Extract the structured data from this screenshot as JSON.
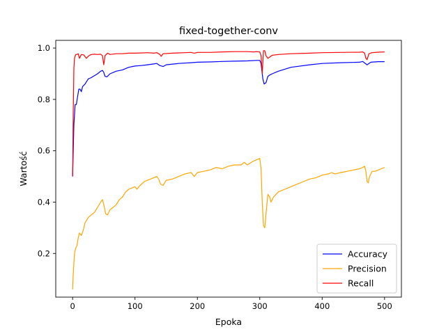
{
  "chart_data": {
    "type": "line",
    "title": "fixed-together-conv",
    "xlabel": "Epoka",
    "ylabel": "Wartość",
    "xlim": [
      -27,
      527
    ],
    "ylim": [
      0.03,
      1.03
    ],
    "xticks": [
      0,
      100,
      200,
      300,
      400,
      500
    ],
    "yticks": [
      0.2,
      0.4,
      0.6,
      0.8,
      1.0
    ],
    "xtick_labels": [
      "0",
      "100",
      "200",
      "300",
      "400",
      "500"
    ],
    "ytick_labels": [
      "0.2",
      "0.4",
      "0.6",
      "0.8",
      "1.0"
    ],
    "grid": false,
    "legend": "lower right",
    "series": [
      {
        "name": "Accuracy",
        "color": "#0000ff",
        "points": [
          [
            0,
            0.5
          ],
          [
            2,
            0.7
          ],
          [
            4,
            0.78
          ],
          [
            6,
            0.78
          ],
          [
            8,
            0.81
          ],
          [
            10,
            0.84
          ],
          [
            12,
            0.84
          ],
          [
            14,
            0.83
          ],
          [
            16,
            0.85
          ],
          [
            20,
            0.86
          ],
          [
            25,
            0.88
          ],
          [
            30,
            0.885
          ],
          [
            40,
            0.9
          ],
          [
            45,
            0.91
          ],
          [
            48,
            0.913
          ],
          [
            50,
            0.905
          ],
          [
            52,
            0.89
          ],
          [
            55,
            0.888
          ],
          [
            60,
            0.9
          ],
          [
            70,
            0.91
          ],
          [
            80,
            0.915
          ],
          [
            90,
            0.925
          ],
          [
            100,
            0.93
          ],
          [
            110,
            0.932
          ],
          [
            120,
            0.935
          ],
          [
            130,
            0.938
          ],
          [
            135,
            0.94
          ],
          [
            140,
            0.932
          ],
          [
            145,
            0.928
          ],
          [
            150,
            0.935
          ],
          [
            170,
            0.94
          ],
          [
            190,
            0.943
          ],
          [
            200,
            0.945
          ],
          [
            220,
            0.946
          ],
          [
            240,
            0.948
          ],
          [
            260,
            0.949
          ],
          [
            280,
            0.95
          ],
          [
            295,
            0.952
          ],
          [
            300,
            0.952
          ],
          [
            302,
            0.94
          ],
          [
            304,
            0.9
          ],
          [
            305,
            0.88
          ],
          [
            307,
            0.86
          ],
          [
            310,
            0.865
          ],
          [
            313,
            0.89
          ],
          [
            316,
            0.895
          ],
          [
            320,
            0.9
          ],
          [
            330,
            0.91
          ],
          [
            350,
            0.925
          ],
          [
            380,
            0.935
          ],
          [
            400,
            0.94
          ],
          [
            430,
            0.943
          ],
          [
            460,
            0.945
          ],
          [
            465,
            0.948
          ],
          [
            470,
            0.938
          ],
          [
            472,
            0.935
          ],
          [
            478,
            0.945
          ],
          [
            490,
            0.947
          ],
          [
            500,
            0.947
          ]
        ]
      },
      {
        "name": "Precision",
        "color": "#ffa500",
        "points": [
          [
            0,
            0.06
          ],
          [
            1,
            0.12
          ],
          [
            3,
            0.2
          ],
          [
            5,
            0.22
          ],
          [
            7,
            0.23
          ],
          [
            9,
            0.26
          ],
          [
            11,
            0.28
          ],
          [
            14,
            0.27
          ],
          [
            17,
            0.29
          ],
          [
            20,
            0.32
          ],
          [
            25,
            0.34
          ],
          [
            30,
            0.35
          ],
          [
            35,
            0.36
          ],
          [
            40,
            0.38
          ],
          [
            45,
            0.4
          ],
          [
            48,
            0.41
          ],
          [
            51,
            0.38
          ],
          [
            53,
            0.355
          ],
          [
            56,
            0.35
          ],
          [
            60,
            0.37
          ],
          [
            65,
            0.38
          ],
          [
            70,
            0.39
          ],
          [
            75,
            0.41
          ],
          [
            80,
            0.42
          ],
          [
            85,
            0.44
          ],
          [
            90,
            0.45
          ],
          [
            95,
            0.455
          ],
          [
            100,
            0.46
          ],
          [
            103,
            0.45
          ],
          [
            108,
            0.465
          ],
          [
            115,
            0.48
          ],
          [
            120,
            0.485
          ],
          [
            125,
            0.49
          ],
          [
            130,
            0.495
          ],
          [
            135,
            0.5
          ],
          [
            138,
            0.49
          ],
          [
            141,
            0.47
          ],
          [
            145,
            0.465
          ],
          [
            150,
            0.485
          ],
          [
            160,
            0.49
          ],
          [
            170,
            0.5
          ],
          [
            180,
            0.51
          ],
          [
            190,
            0.515
          ],
          [
            195,
            0.5
          ],
          [
            200,
            0.515
          ],
          [
            210,
            0.52
          ],
          [
            220,
            0.525
          ],
          [
            230,
            0.535
          ],
          [
            240,
            0.53
          ],
          [
            250,
            0.54
          ],
          [
            260,
            0.545
          ],
          [
            270,
            0.545
          ],
          [
            275,
            0.555
          ],
          [
            280,
            0.545
          ],
          [
            290,
            0.56
          ],
          [
            295,
            0.565
          ],
          [
            300,
            0.57
          ],
          [
            302,
            0.53
          ],
          [
            304,
            0.4
          ],
          [
            306,
            0.31
          ],
          [
            308,
            0.3
          ],
          [
            311,
            0.38
          ],
          [
            313,
            0.43
          ],
          [
            316,
            0.42
          ],
          [
            318,
            0.4
          ],
          [
            322,
            0.42
          ],
          [
            330,
            0.44
          ],
          [
            340,
            0.45
          ],
          [
            350,
            0.46
          ],
          [
            360,
            0.47
          ],
          [
            370,
            0.48
          ],
          [
            380,
            0.49
          ],
          [
            390,
            0.495
          ],
          [
            400,
            0.505
          ],
          [
            410,
            0.51
          ],
          [
            415,
            0.515
          ],
          [
            420,
            0.51
          ],
          [
            430,
            0.515
          ],
          [
            440,
            0.52
          ],
          [
            450,
            0.525
          ],
          [
            460,
            0.53
          ],
          [
            465,
            0.535
          ],
          [
            468,
            0.54
          ],
          [
            470,
            0.52
          ],
          [
            472,
            0.48
          ],
          [
            474,
            0.475
          ],
          [
            476,
            0.5
          ],
          [
            480,
            0.52
          ],
          [
            485,
            0.52
          ],
          [
            490,
            0.525
          ],
          [
            495,
            0.53
          ],
          [
            500,
            0.535
          ]
        ]
      },
      {
        "name": "Recall",
        "color": "#ff0000",
        "points": [
          [
            0,
            0.5
          ],
          [
            1,
            0.75
          ],
          [
            2,
            0.92
          ],
          [
            3,
            0.96
          ],
          [
            5,
            0.975
          ],
          [
            7,
            0.975
          ],
          [
            9,
            0.978
          ],
          [
            11,
            0.96
          ],
          [
            14,
            0.975
          ],
          [
            18,
            0.973
          ],
          [
            22,
            0.96
          ],
          [
            26,
            0.97
          ],
          [
            30,
            0.975
          ],
          [
            35,
            0.976
          ],
          [
            40,
            0.975
          ],
          [
            45,
            0.976
          ],
          [
            48,
            0.97
          ],
          [
            50,
            0.935
          ],
          [
            52,
            0.97
          ],
          [
            54,
            0.975
          ],
          [
            56,
            0.98
          ],
          [
            60,
            0.975
          ],
          [
            70,
            0.978
          ],
          [
            80,
            0.978
          ],
          [
            90,
            0.98
          ],
          [
            100,
            0.98
          ],
          [
            110,
            0.981
          ],
          [
            120,
            0.982
          ],
          [
            130,
            0.98
          ],
          [
            135,
            0.982
          ],
          [
            140,
            0.975
          ],
          [
            142,
            0.968
          ],
          [
            145,
            0.978
          ],
          [
            160,
            0.98
          ],
          [
            180,
            0.982
          ],
          [
            190,
            0.983
          ],
          [
            195,
            0.98
          ],
          [
            200,
            0.983
          ],
          [
            220,
            0.983
          ],
          [
            240,
            0.985
          ],
          [
            260,
            0.986
          ],
          [
            280,
            0.986
          ],
          [
            290,
            0.985
          ],
          [
            295,
            0.986
          ],
          [
            300,
            0.985
          ],
          [
            302,
            0.97
          ],
          [
            304,
            0.9
          ],
          [
            306,
            0.99
          ],
          [
            308,
            0.99
          ],
          [
            310,
            0.97
          ],
          [
            313,
            0.96
          ],
          [
            316,
            0.965
          ],
          [
            320,
            0.972
          ],
          [
            330,
            0.975
          ],
          [
            350,
            0.978
          ],
          [
            380,
            0.98
          ],
          [
            400,
            0.982
          ],
          [
            430,
            0.983
          ],
          [
            460,
            0.984
          ],
          [
            465,
            0.985
          ],
          [
            468,
            0.98
          ],
          [
            470,
            0.96
          ],
          [
            472,
            0.955
          ],
          [
            475,
            0.978
          ],
          [
            480,
            0.982
          ],
          [
            490,
            0.984
          ],
          [
            500,
            0.985
          ]
        ]
      }
    ]
  }
}
